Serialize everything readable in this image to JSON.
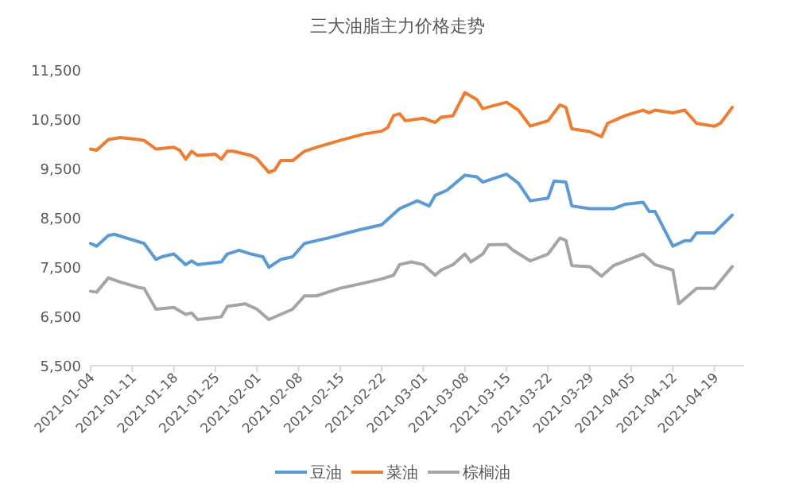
{
  "chart_data": {
    "type": "line",
    "title": "三大油脂主力价格走势",
    "legend": "bottom",
    "xlim": [
      "2021-01-04",
      "2021-04-24"
    ],
    "xticks": [
      "2021-01-04",
      "2021-01-11",
      "2021-01-18",
      "2021-01-25",
      "2021-02-01",
      "2021-02-08",
      "2021-02-15",
      "2021-02-22",
      "2021-03-01",
      "2021-03-08",
      "2021-03-15",
      "2021-03-22",
      "2021-03-29",
      "2021-04-05",
      "2021-04-12",
      "2021-04-19"
    ],
    "ylim": [
      5500,
      11500
    ],
    "yticks": [
      {
        "value": 5500,
        "label": "5,500"
      },
      {
        "value": 6500,
        "label": "6,500"
      },
      {
        "value": 7500,
        "label": "7,500"
      },
      {
        "value": 8500,
        "label": "8,500"
      },
      {
        "value": 9500,
        "label": "9,500"
      },
      {
        "value": 10500,
        "label": "10,500"
      },
      {
        "value": 11500,
        "label": "11,500"
      }
    ],
    "series": [
      {
        "name": "豆油",
        "color": "#5b9bd5",
        "x": [
          "2021-01-04",
          "2021-01-05",
          "2021-01-07",
          "2021-01-08",
          "2021-01-10",
          "2021-01-13",
          "2021-01-15",
          "2021-01-16",
          "2021-01-18",
          "2021-01-20",
          "2021-01-21",
          "2021-01-22",
          "2021-01-26",
          "2021-01-27",
          "2021-01-29",
          "2021-01-31",
          "2021-02-02",
          "2021-02-03",
          "2021-02-05",
          "2021-02-07",
          "2021-02-09",
          "2021-02-13",
          "2021-02-18",
          "2021-02-22",
          "2021-02-24",
          "2021-02-25",
          "2021-02-28",
          "2021-03-02",
          "2021-03-03",
          "2021-03-05",
          "2021-03-08",
          "2021-03-10",
          "2021-03-11",
          "2021-03-15",
          "2021-03-17",
          "2021-03-19",
          "2021-03-22",
          "2021-03-23",
          "2021-03-25",
          "2021-03-26",
          "2021-03-29",
          "2021-04-02",
          "2021-04-04",
          "2021-04-07",
          "2021-04-08",
          "2021-04-09",
          "2021-04-12",
          "2021-04-14",
          "2021-04-15",
          "2021-04-16",
          "2021-04-19",
          "2021-04-22"
        ],
        "values": [
          7980,
          7925,
          8140,
          8165,
          8090,
          7980,
          7655,
          7710,
          7765,
          7550,
          7625,
          7550,
          7605,
          7765,
          7840,
          7765,
          7710,
          7495,
          7655,
          7710,
          7980,
          8090,
          8250,
          8360,
          8575,
          8685,
          8845,
          8740,
          8955,
          9060,
          9365,
          9330,
          9225,
          9385,
          9205,
          8845,
          8900,
          9245,
          9225,
          8740,
          8685,
          8685,
          8775,
          8815,
          8630,
          8630,
          7925,
          8035,
          8035,
          8195,
          8195,
          8555
        ]
      },
      {
        "name": "菜油",
        "color": "#ed7d31",
        "x": [
          "2021-01-04",
          "2021-01-05",
          "2021-01-07",
          "2021-01-09",
          "2021-01-12",
          "2021-01-13",
          "2021-01-15",
          "2021-01-18",
          "2021-01-19",
          "2021-01-20",
          "2021-01-21",
          "2021-01-22",
          "2021-01-25",
          "2021-01-26",
          "2021-01-27",
          "2021-01-28",
          "2021-01-31",
          "2021-02-01",
          "2021-02-03",
          "2021-02-04",
          "2021-02-05",
          "2021-02-07",
          "2021-02-09",
          "2021-02-11",
          "2021-02-15",
          "2021-02-19",
          "2021-02-22",
          "2021-02-23",
          "2021-02-24",
          "2021-02-25",
          "2021-02-26",
          "2021-03-01",
          "2021-03-03",
          "2021-03-04",
          "2021-03-06",
          "2021-03-08",
          "2021-03-10",
          "2021-03-11",
          "2021-03-15",
          "2021-03-17",
          "2021-03-19",
          "2021-03-22",
          "2021-03-24",
          "2021-03-25",
          "2021-03-26",
          "2021-03-29",
          "2021-03-31",
          "2021-04-01",
          "2021-04-04",
          "2021-04-07",
          "2021-04-08",
          "2021-04-09",
          "2021-04-12",
          "2021-04-14",
          "2021-04-16",
          "2021-04-19",
          "2021-04-20",
          "2021-04-22"
        ],
        "values": [
          9895,
          9870,
          10090,
          10130,
          10090,
          10070,
          9895,
          9930,
          9870,
          9690,
          9850,
          9765,
          9790,
          9690,
          9850,
          9850,
          9765,
          9700,
          9420,
          9470,
          9660,
          9660,
          9850,
          9930,
          10070,
          10200,
          10260,
          10330,
          10575,
          10610,
          10470,
          10520,
          10435,
          10540,
          10570,
          11040,
          10900,
          10715,
          10845,
          10685,
          10360,
          10470,
          10790,
          10740,
          10305,
          10250,
          10145,
          10415,
          10575,
          10685,
          10630,
          10685,
          10630,
          10685,
          10415,
          10360,
          10415,
          10740
        ]
      },
      {
        "name": "棕榈油",
        "color": "#a5a5a5",
        "x": [
          "2021-01-04",
          "2021-01-05",
          "2021-01-07",
          "2021-01-09",
          "2021-01-12",
          "2021-01-13",
          "2021-01-15",
          "2021-01-18",
          "2021-01-20",
          "2021-01-21",
          "2021-01-22",
          "2021-01-26",
          "2021-01-27",
          "2021-01-30",
          "2021-02-01",
          "2021-02-03",
          "2021-02-05",
          "2021-02-07",
          "2021-02-09",
          "2021-02-11",
          "2021-02-15",
          "2021-02-19",
          "2021-02-22",
          "2021-02-24",
          "2021-02-25",
          "2021-02-27",
          "2021-03-01",
          "2021-03-03",
          "2021-03-04",
          "2021-03-06",
          "2021-03-08",
          "2021-03-09",
          "2021-03-11",
          "2021-03-12",
          "2021-03-15",
          "2021-03-16",
          "2021-03-19",
          "2021-03-22",
          "2021-03-24",
          "2021-03-25",
          "2021-03-26",
          "2021-03-29",
          "2021-03-31",
          "2021-04-02",
          "2021-04-07",
          "2021-04-09",
          "2021-04-12",
          "2021-04-13",
          "2021-04-16",
          "2021-04-19",
          "2021-04-22"
        ],
        "values": [
          7010,
          6990,
          7280,
          7195,
          7090,
          7070,
          6645,
          6680,
          6540,
          6570,
          6435,
          6490,
          6700,
          6755,
          6645,
          6435,
          6540,
          6645,
          6915,
          6915,
          7070,
          7175,
          7260,
          7335,
          7550,
          7605,
          7550,
          7335,
          7440,
          7550,
          7765,
          7605,
          7765,
          7950,
          7960,
          7850,
          7625,
          7765,
          8090,
          8040,
          7530,
          7510,
          7315,
          7530,
          7765,
          7550,
          7440,
          6755,
          7070,
          7070,
          7510
        ]
      }
    ]
  }
}
